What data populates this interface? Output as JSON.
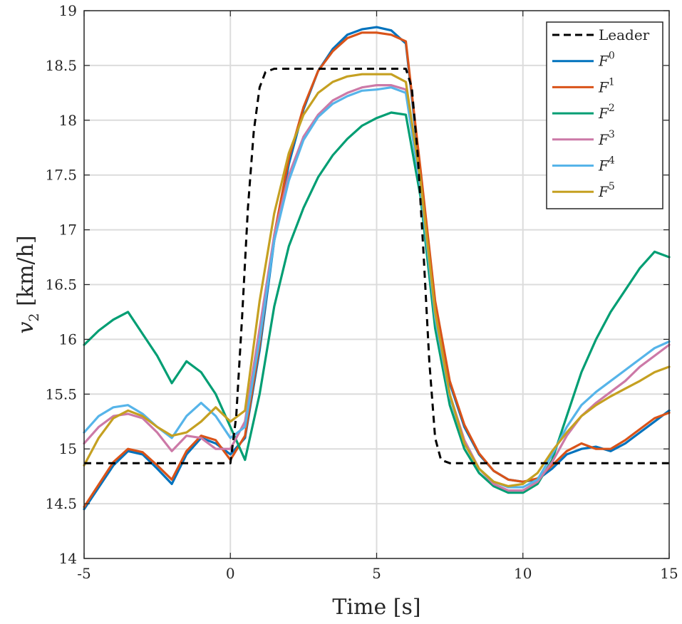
{
  "chart_data": {
    "type": "line",
    "title": "",
    "xlabel": "Time [s]",
    "ylabel_var": "v",
    "ylabel_sub": "2",
    "ylabel_unit": " [km/h]",
    "xlim": [
      -5,
      15
    ],
    "ylim": [
      14,
      19
    ],
    "xticks": [
      -5,
      0,
      5,
      10,
      15
    ],
    "yticks": [
      14,
      14.5,
      15,
      15.5,
      16,
      16.5,
      17,
      17.5,
      18,
      18.5,
      19
    ],
    "xtick_labels": [
      "-5",
      "0",
      "5",
      "10",
      "15"
    ],
    "ytick_labels": [
      "14",
      "14.5",
      "15",
      "15.5",
      "16",
      "16.5",
      "17",
      "17.5",
      "18",
      "18.5",
      "19"
    ],
    "grid": true,
    "legend_position": "top-right",
    "series": [
      {
        "name": "Leader",
        "label_main": "Leader",
        "label_sup": "",
        "color": "#000000",
        "style": "dashed",
        "x": [
          -5,
          0,
          0.2,
          0.4,
          0.6,
          0.8,
          1.0,
          1.2,
          1.5,
          2,
          6,
          6.2,
          6.4,
          6.6,
          6.8,
          7.0,
          7.2,
          7.5,
          8,
          15
        ],
        "values": [
          14.87,
          14.87,
          15.3,
          16.2,
          17.2,
          17.9,
          18.3,
          18.44,
          18.47,
          18.47,
          18.47,
          18.3,
          17.7,
          16.8,
          15.8,
          15.1,
          14.9,
          14.87,
          14.87,
          14.87
        ]
      },
      {
        "name": "F0",
        "label_main": "F",
        "label_sup": "0",
        "color": "#0072BD",
        "style": "solid",
        "x": [
          -5,
          -4,
          -3.5,
          -3,
          -2.5,
          -2,
          -1.5,
          -1,
          -0.5,
          0,
          0.5,
          1,
          1.5,
          2,
          2.5,
          3,
          3.5,
          4,
          4.5,
          5,
          5.5,
          6,
          6.5,
          7,
          7.5,
          8,
          8.5,
          9,
          9.5,
          10,
          10.5,
          11,
          11.5,
          12,
          12.5,
          13,
          13.5,
          14,
          14.5,
          15
        ],
        "values": [
          14.45,
          14.85,
          14.98,
          14.95,
          14.82,
          14.68,
          14.95,
          15.1,
          15.05,
          14.95,
          15.1,
          15.9,
          16.9,
          17.6,
          18.1,
          18.45,
          18.65,
          18.78,
          18.83,
          18.85,
          18.82,
          18.7,
          17.5,
          16.3,
          15.6,
          15.2,
          14.95,
          14.8,
          14.72,
          14.7,
          14.72,
          14.82,
          14.95,
          15.0,
          15.02,
          14.98,
          15.05,
          15.15,
          15.25,
          15.35
        ]
      },
      {
        "name": "F1",
        "label_main": "F",
        "label_sup": "1",
        "color": "#D95319",
        "style": "solid",
        "x": [
          -5,
          -4,
          -3.5,
          -3,
          -2.5,
          -2,
          -1.5,
          -1,
          -0.5,
          0,
          0.5,
          1,
          1.5,
          2,
          2.5,
          3,
          3.5,
          4,
          4.5,
          5,
          5.5,
          6,
          6.5,
          7,
          7.5,
          8,
          8.5,
          9,
          9.5,
          10,
          10.5,
          11,
          11.5,
          12,
          12.5,
          13,
          13.5,
          14,
          14.5,
          15
        ],
        "values": [
          14.47,
          14.88,
          15.0,
          14.97,
          14.85,
          14.72,
          14.98,
          15.12,
          15.08,
          14.9,
          15.12,
          15.95,
          16.95,
          17.65,
          18.12,
          18.45,
          18.63,
          18.75,
          18.8,
          18.8,
          18.78,
          18.72,
          17.55,
          16.35,
          15.62,
          15.22,
          14.96,
          14.8,
          14.72,
          14.7,
          14.73,
          14.85,
          14.98,
          15.05,
          15.0,
          15.0,
          15.08,
          15.18,
          15.28,
          15.33
        ]
      },
      {
        "name": "F2",
        "label_main": "F",
        "label_sup": "2",
        "color": "#009E73",
        "style": "solid",
        "x": [
          -5,
          -4.5,
          -4,
          -3.5,
          -3,
          -2.5,
          -2,
          -1.5,
          -1,
          -0.5,
          0,
          0.5,
          1,
          1.5,
          2,
          2.5,
          3,
          3.5,
          4,
          4.5,
          5,
          5.5,
          6,
          6.5,
          7,
          7.5,
          8,
          8.5,
          9,
          9.5,
          10,
          10.5,
          11,
          11.5,
          12,
          12.5,
          13,
          13.5,
          14,
          14.5,
          15
        ],
        "values": [
          15.95,
          16.08,
          16.18,
          16.25,
          16.05,
          15.85,
          15.6,
          15.8,
          15.7,
          15.5,
          15.2,
          14.9,
          15.5,
          16.3,
          16.85,
          17.2,
          17.48,
          17.68,
          17.83,
          17.95,
          18.02,
          18.07,
          18.05,
          17.3,
          16.1,
          15.4,
          15.0,
          14.78,
          14.66,
          14.6,
          14.6,
          14.68,
          14.9,
          15.3,
          15.7,
          16.0,
          16.25,
          16.45,
          16.65,
          16.8,
          16.75
        ]
      },
      {
        "name": "F3",
        "label_main": "F",
        "label_sup": "3",
        "color": "#CC79A7",
        "style": "solid",
        "x": [
          -5,
          -4.5,
          -4,
          -3.5,
          -3,
          -2.5,
          -2,
          -1.5,
          -1,
          -0.5,
          0,
          0.5,
          1,
          1.5,
          2,
          2.5,
          3,
          3.5,
          4,
          4.5,
          5,
          5.5,
          6,
          6.5,
          7,
          7.5,
          8,
          8.5,
          9,
          9.5,
          10,
          10.5,
          11,
          11.5,
          12,
          12.5,
          13,
          13.5,
          14,
          14.5,
          15
        ],
        "values": [
          15.05,
          15.2,
          15.3,
          15.32,
          15.28,
          15.15,
          14.98,
          15.12,
          15.1,
          15.0,
          15.0,
          15.25,
          16.1,
          16.95,
          17.5,
          17.85,
          18.05,
          18.18,
          18.25,
          18.3,
          18.32,
          18.32,
          18.28,
          17.4,
          16.25,
          15.5,
          15.08,
          14.82,
          14.68,
          14.62,
          14.62,
          14.7,
          14.88,
          15.12,
          15.3,
          15.42,
          15.52,
          15.62,
          15.75,
          15.85,
          15.95
        ]
      },
      {
        "name": "F4",
        "label_main": "F",
        "label_sup": "4",
        "color": "#56B4E9",
        "style": "solid",
        "x": [
          -5,
          -4.5,
          -4,
          -3.5,
          -3,
          -2.5,
          -2,
          -1.5,
          -1,
          -0.5,
          0,
          0.5,
          1,
          1.5,
          2,
          2.5,
          3,
          3.5,
          4,
          4.5,
          5,
          5.5,
          6,
          6.5,
          7,
          7.5,
          8,
          8.5,
          9,
          9.5,
          10,
          10.5,
          11,
          11.5,
          12,
          12.5,
          13,
          13.5,
          14,
          14.5,
          15
        ],
        "values": [
          15.15,
          15.3,
          15.38,
          15.4,
          15.32,
          15.2,
          15.1,
          15.3,
          15.42,
          15.3,
          15.1,
          15.2,
          16.0,
          16.9,
          17.45,
          17.82,
          18.03,
          18.15,
          18.22,
          18.27,
          18.28,
          18.3,
          18.25,
          17.38,
          16.2,
          15.48,
          15.05,
          14.82,
          14.7,
          14.65,
          14.65,
          14.72,
          14.95,
          15.2,
          15.4,
          15.52,
          15.62,
          15.72,
          15.82,
          15.92,
          15.98
        ]
      },
      {
        "name": "F5",
        "label_main": "F",
        "label_sup": "5",
        "color": "#C5A021",
        "style": "solid",
        "x": [
          -5,
          -4.5,
          -4,
          -3.5,
          -3,
          -2.5,
          -2,
          -1.5,
          -1,
          -0.5,
          0,
          0.5,
          1,
          1.5,
          2,
          2.5,
          3,
          3.5,
          4,
          4.5,
          5,
          5.5,
          6,
          6.5,
          7,
          7.5,
          8,
          8.5,
          9,
          9.5,
          10,
          10.5,
          11,
          11.5,
          12,
          12.5,
          13,
          13.5,
          14,
          14.5,
          15
        ],
        "values": [
          14.85,
          15.1,
          15.28,
          15.35,
          15.3,
          15.2,
          15.12,
          15.15,
          15.25,
          15.38,
          15.25,
          15.35,
          16.35,
          17.15,
          17.7,
          18.05,
          18.25,
          18.35,
          18.4,
          18.42,
          18.42,
          18.42,
          18.35,
          17.45,
          16.25,
          15.5,
          15.05,
          14.82,
          14.7,
          14.66,
          14.68,
          14.78,
          14.98,
          15.15,
          15.3,
          15.4,
          15.48,
          15.55,
          15.62,
          15.7,
          15.75
        ]
      }
    ]
  }
}
